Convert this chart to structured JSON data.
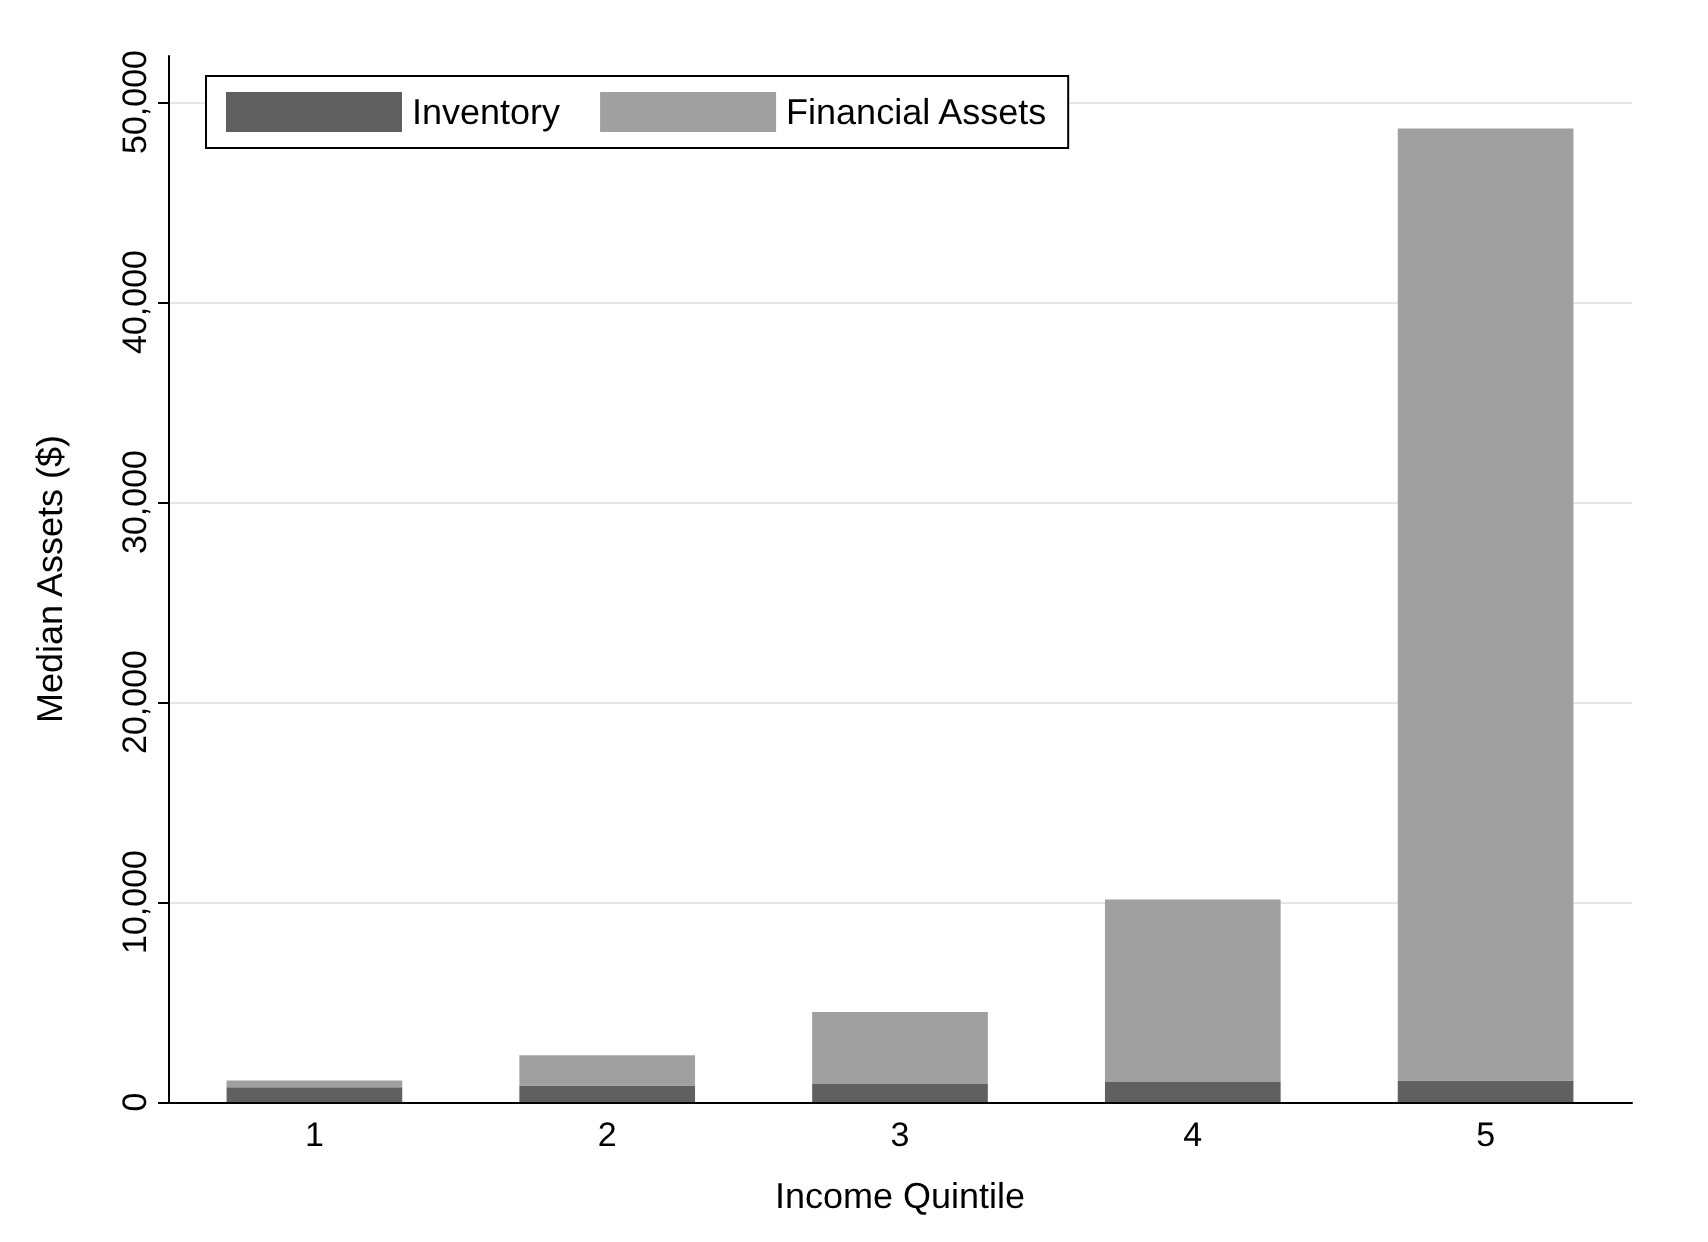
{
  "chart_data": {
    "type": "bar",
    "stacked": true,
    "xlabel": "Income Quintile",
    "ylabel": "Median Assets ($)",
    "categories": [
      "1",
      "2",
      "3",
      "4",
      "5"
    ],
    "series": [
      {
        "name": "Inventory",
        "color": "#606060",
        "values": [
          740,
          820,
          900,
          1000,
          1080
        ]
      },
      {
        "name": "Financial Assets",
        "color": "#a0a0a0",
        "values": [
          340,
          1520,
          3600,
          9130,
          47590
        ]
      }
    ],
    "ylim": [
      0,
      52300
    ],
    "yticks": [
      {
        "value": 0,
        "label": "0"
      },
      {
        "value": 10000,
        "label": "10,000"
      },
      {
        "value": 20000,
        "label": "20,000"
      },
      {
        "value": 30000,
        "label": "30,000"
      },
      {
        "value": 40000,
        "label": "40,000"
      },
      {
        "value": 50000,
        "label": "50,000"
      }
    ],
    "grid": "y",
    "legend": "top left"
  }
}
